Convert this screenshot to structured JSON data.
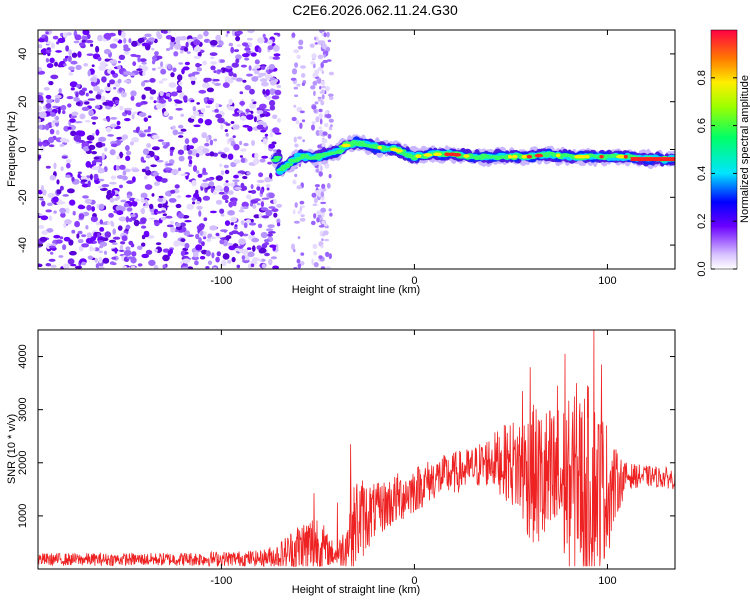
{
  "title": "C2E6.2026.062.11.24.G30",
  "chart_data": [
    {
      "type": "heatmap",
      "name": "spectrogram",
      "xlabel": "Height of straight line (km)",
      "ylabel": "Frequency (Hz)",
      "xlim": [
        -195,
        135
      ],
      "ylim": [
        -50,
        50
      ],
      "x_ticks": [
        -100,
        0,
        100
      ],
      "y_ticks": [
        -40,
        -20,
        0,
        20,
        40
      ],
      "colorbar": {
        "label": "Normalized spectral amplitude",
        "range": [
          0,
          1
        ],
        "ticks": [
          0.0,
          0.2,
          0.4,
          0.6,
          0.8
        ]
      },
      "ridge": [
        {
          "x": -70,
          "y": -9
        },
        {
          "x": -60,
          "y": -3
        },
        {
          "x": -50,
          "y": -3
        },
        {
          "x": -40,
          "y": -1
        },
        {
          "x": -35,
          "y": 2
        },
        {
          "x": -30,
          "y": 3
        },
        {
          "x": -25,
          "y": 2
        },
        {
          "x": -20,
          "y": 1
        },
        {
          "x": -10,
          "y": 0
        },
        {
          "x": 0,
          "y": -3
        },
        {
          "x": 10,
          "y": -2
        },
        {
          "x": 20,
          "y": -2
        },
        {
          "x": 30,
          "y": -3
        },
        {
          "x": 40,
          "y": -3
        },
        {
          "x": 50,
          "y": -3
        },
        {
          "x": 60,
          "y": -3
        },
        {
          "x": 70,
          "y": -2
        },
        {
          "x": 80,
          "y": -3
        },
        {
          "x": 90,
          "y": -3
        },
        {
          "x": 100,
          "y": -3
        },
        {
          "x": 110,
          "y": -3
        },
        {
          "x": 120,
          "y": -4
        },
        {
          "x": 135,
          "y": -4
        }
      ]
    },
    {
      "type": "line",
      "name": "snr",
      "xlabel": "Height of straight line (km)",
      "ylabel": "SNR (10 * v/v)",
      "xlim": [
        -195,
        135
      ],
      "ylim": [
        0,
        4500
      ],
      "x_ticks": [
        -100,
        0,
        100
      ],
      "y_ticks": [
        1000,
        2000,
        3000,
        4000
      ],
      "color": "#ee2222",
      "envelope": [
        {
          "x": -195,
          "base": 180,
          "amp": 120
        },
        {
          "x": -140,
          "base": 180,
          "amp": 120
        },
        {
          "x": -80,
          "base": 200,
          "amp": 150
        },
        {
          "x": -70,
          "base": 250,
          "amp": 250
        },
        {
          "x": -60,
          "base": 400,
          "amp": 500
        },
        {
          "x": -50,
          "base": 450,
          "amp": 700
        },
        {
          "x": -45,
          "base": 350,
          "amp": 300
        },
        {
          "x": -40,
          "base": 250,
          "amp": 200
        },
        {
          "x": -35,
          "base": 500,
          "amp": 500
        },
        {
          "x": -30,
          "base": 900,
          "amp": 900
        },
        {
          "x": -25,
          "base": 1000,
          "amp": 700
        },
        {
          "x": -20,
          "base": 1100,
          "amp": 500
        },
        {
          "x": -10,
          "base": 1300,
          "amp": 500
        },
        {
          "x": 0,
          "base": 1500,
          "amp": 450
        },
        {
          "x": 10,
          "base": 1700,
          "amp": 400
        },
        {
          "x": 20,
          "base": 1800,
          "amp": 400
        },
        {
          "x": 30,
          "base": 1900,
          "amp": 400
        },
        {
          "x": 40,
          "base": 2050,
          "amp": 500
        },
        {
          "x": 50,
          "base": 2000,
          "amp": 800
        },
        {
          "x": 60,
          "base": 1800,
          "amp": 1300
        },
        {
          "x": 70,
          "base": 1600,
          "amp": 1500
        },
        {
          "x": 80,
          "base": 1600,
          "amp": 1600
        },
        {
          "x": 90,
          "base": 1600,
          "amp": 1900
        },
        {
          "x": 100,
          "base": 1500,
          "amp": 1300
        },
        {
          "x": 105,
          "base": 1600,
          "amp": 600
        },
        {
          "x": 110,
          "base": 1750,
          "amp": 250
        },
        {
          "x": 120,
          "base": 1750,
          "amp": 200
        },
        {
          "x": 135,
          "base": 1700,
          "amp": 200
        }
      ],
      "spikes": [
        {
          "x": -52,
          "y": 1430
        },
        {
          "x": -40,
          "y": 1250
        },
        {
          "x": -33,
          "y": 2350
        },
        {
          "x": 56,
          "y": 3350
        },
        {
          "x": 60,
          "y": 3800
        },
        {
          "x": 74,
          "y": 3450
        },
        {
          "x": 78,
          "y": 4050
        },
        {
          "x": 84,
          "y": 3500
        },
        {
          "x": 93,
          "y": 4500
        },
        {
          "x": 97,
          "y": 3850
        }
      ]
    }
  ]
}
